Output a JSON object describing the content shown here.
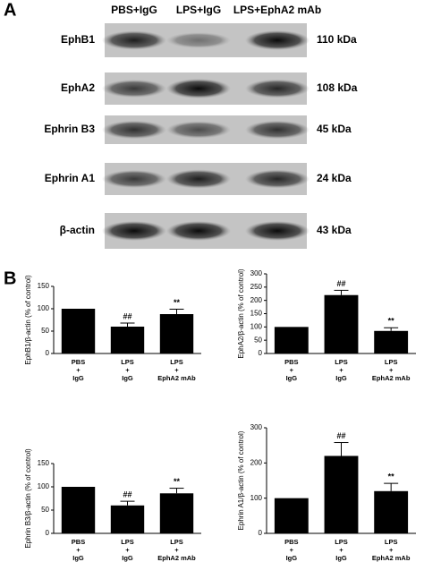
{
  "panel_labels": [
    "A",
    "B"
  ],
  "blot": {
    "lanes": [
      "PBS+IgG",
      "LPS+IgG",
      "LPS+EphA2 mAb"
    ],
    "rows": [
      {
        "protein": "EphB1",
        "size": "110 kDa"
      },
      {
        "protein": "EphA2",
        "size": "108 kDa"
      },
      {
        "protein": "Ephrin B3",
        "size": "45 kDa"
      },
      {
        "protein": "Ephrin A1",
        "size": "24 kDa"
      },
      {
        "protein": "β-actin",
        "size": "43 kDa"
      }
    ]
  },
  "chart_data": [
    {
      "type": "bar",
      "ylabel": "EphB1/β-actin (% of control)",
      "categories": [
        [
          "PBS",
          "+",
          "IgG"
        ],
        [
          "LPS",
          "+",
          "IgG"
        ],
        [
          "LPS",
          "+",
          "EphA2 mAb"
        ]
      ],
      "values": [
        100,
        60,
        88
      ],
      "errors": [
        0,
        8,
        11
      ],
      "annotations": [
        null,
        "##",
        "**"
      ],
      "color": "#000000",
      "ylim": [
        0,
        150
      ],
      "yticks": [
        0,
        50,
        100,
        150
      ]
    },
    {
      "type": "bar",
      "ylabel": "EphA2/β-actin (% of control)",
      "categories": [
        [
          "PBS",
          "+",
          "IgG"
        ],
        [
          "LPS",
          "+",
          "IgG"
        ],
        [
          "LPS",
          "+",
          "EphA2 mAb"
        ]
      ],
      "values": [
        100,
        220,
        85
      ],
      "errors": [
        0,
        18,
        12
      ],
      "annotations": [
        null,
        "##",
        "**"
      ],
      "color": "#000000",
      "ylim": [
        0,
        300
      ],
      "yticks": [
        0,
        50,
        100,
        150,
        200,
        250,
        300
      ]
    },
    {
      "type": "bar",
      "ylabel": "Ephrin B3/β-actin (% of control)",
      "categories": [
        [
          "PBS",
          "+",
          "IgG"
        ],
        [
          "LPS",
          "+",
          "IgG"
        ],
        [
          "LPS",
          "+",
          "EphA2 mAb"
        ]
      ],
      "values": [
        100,
        60,
        86
      ],
      "errors": [
        0,
        9,
        11
      ],
      "annotations": [
        null,
        "##",
        "**"
      ],
      "color": "#000000",
      "ylim": [
        0,
        150
      ],
      "yticks": [
        0,
        50,
        100,
        150
      ]
    },
    {
      "type": "bar",
      "ylabel": "Ephrin A1/β-actin (% of control)",
      "categories": [
        [
          "PBS",
          "+",
          "IgG"
        ],
        [
          "LPS",
          "+",
          "IgG"
        ],
        [
          "LPS",
          "+",
          "EphA2 mAb"
        ]
      ],
      "values": [
        100,
        220,
        120
      ],
      "errors": [
        0,
        38,
        22
      ],
      "annotations": [
        null,
        "##",
        "**"
      ],
      "color": "#000000",
      "ylim": [
        0,
        300
      ],
      "yticks": [
        0,
        100,
        200,
        300
      ]
    }
  ]
}
